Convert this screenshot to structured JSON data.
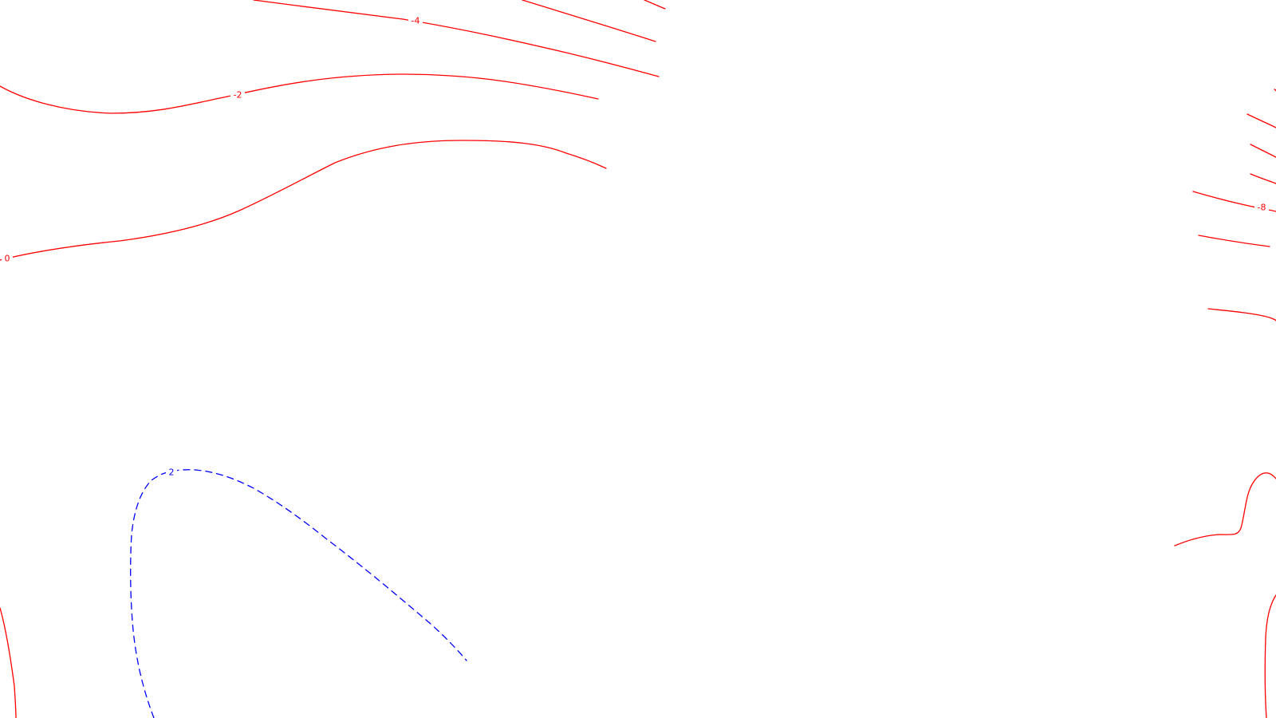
{
  "map": {
    "colors": {
      "negative": "#ff0000",
      "positive": "#0000ff",
      "background": "#ffffff"
    },
    "contour_labels": {
      "minus_four": "-4",
      "minus_two": "-2",
      "zero": "0",
      "minus_eight": "-8",
      "plus_two": "2"
    }
  }
}
